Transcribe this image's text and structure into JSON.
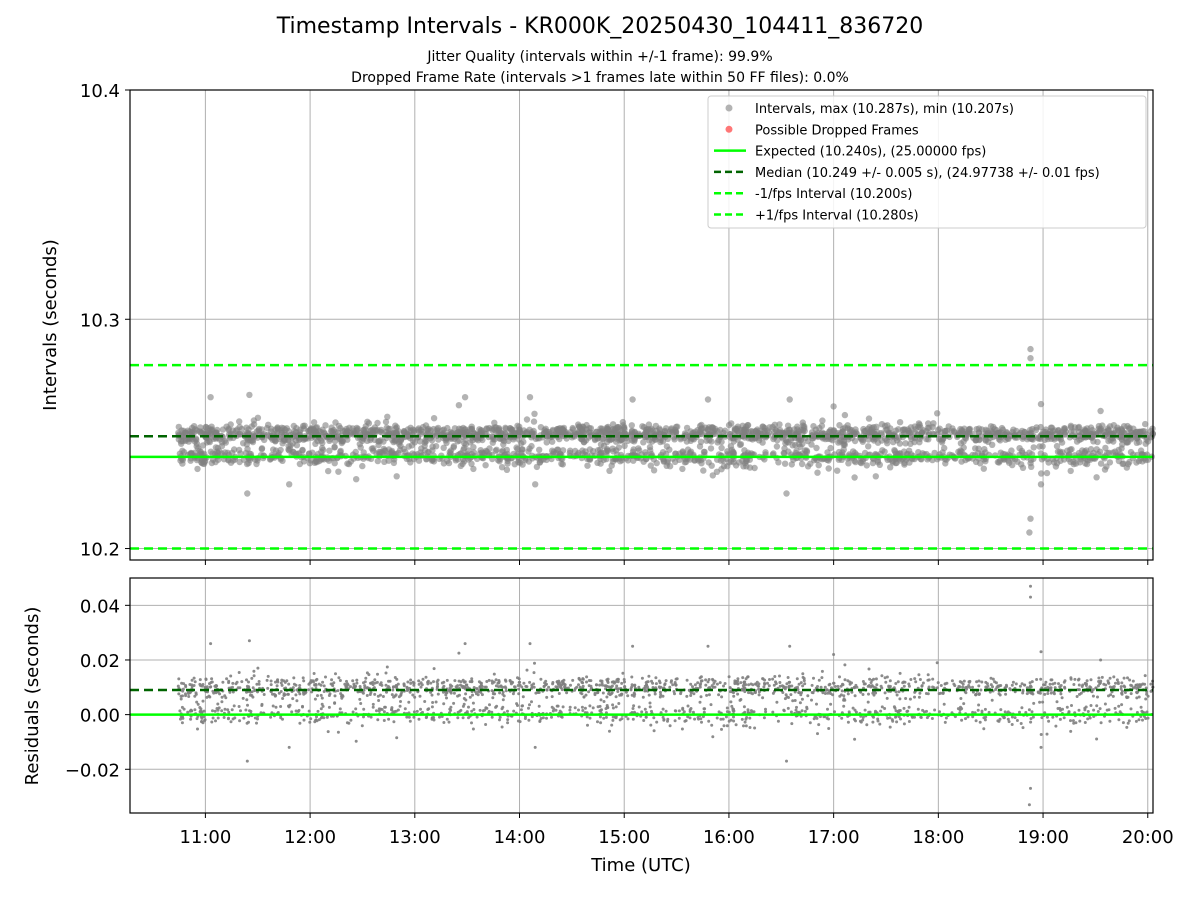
{
  "figure": {
    "title": "Timestamp Intervals - KR000K_20250430_104411_836720",
    "subtitle_line1": "Jitter Quality (intervals within +/-1 frame): 99.9%",
    "subtitle_line2": "Dropped Frame Rate (intervals >1 frames late within 50 FF files): 0.0%"
  },
  "colors": {
    "points": "#808080",
    "dropped": "#ff5555",
    "expected": "#00ff00",
    "median": "#006400",
    "fps_bounds": "#00ff00",
    "grid": "#b0b0b0"
  },
  "chart_data": [
    {
      "type": "scatter",
      "panel": "intervals",
      "ylabel": "Intervals (seconds)",
      "ylim": [
        10.195,
        10.4
      ],
      "yticks": [
        10.2,
        10.3,
        10.4
      ],
      "ytick_labels": [
        "10.2",
        "10.3",
        "10.4"
      ],
      "xlim_hours": [
        10.28,
        20.05
      ],
      "xticks_hours": [
        11,
        12,
        13,
        14,
        15,
        16,
        17,
        18,
        19,
        20
      ],
      "xtick_labels": [
        "11:00",
        "12:00",
        "13:00",
        "14:00",
        "15:00",
        "16:00",
        "17:00",
        "18:00",
        "19:00",
        "20:00"
      ],
      "grid": true,
      "legend_position": "top-right",
      "legend": [
        {
          "label": "Intervals, max (10.287s), min (10.207s)",
          "kind": "point",
          "color": "#a0a0a0"
        },
        {
          "label": "Possible Dropped Frames",
          "kind": "point",
          "color": "#ff5555"
        },
        {
          "label": "Expected (10.240s), (25.00000 fps)",
          "kind": "line",
          "color": "#00ff00"
        },
        {
          "label": "Median (10.249 +/- 0.005 s), (24.97738 +/- 0.01 fps)",
          "kind": "dashed",
          "color": "#006400"
        },
        {
          "label": "-1/fps Interval (10.200s)",
          "kind": "dashed",
          "color": "#00ff00"
        },
        {
          "label": "+1/fps Interval (10.280s)",
          "kind": "dashed",
          "color": "#00ff00"
        }
      ],
      "reference_lines": {
        "expected": 10.24,
        "median": 10.249,
        "minus_one_fps": 10.2,
        "plus_one_fps": 10.28
      },
      "series": {
        "time_range_hours": [
          10.74,
          20.05
        ],
        "cluster_values": [
          10.24,
          10.25
        ],
        "max": 10.287,
        "min": 10.207,
        "outliers": [
          {
            "t": 11.05,
            "y": 10.266
          },
          {
            "t": 11.42,
            "y": 10.267
          },
          {
            "t": 11.4,
            "y": 10.224
          },
          {
            "t": 11.8,
            "y": 10.228
          },
          {
            "t": 13.48,
            "y": 10.266
          },
          {
            "t": 14.1,
            "y": 10.266
          },
          {
            "t": 14.15,
            "y": 10.228
          },
          {
            "t": 15.08,
            "y": 10.265
          },
          {
            "t": 15.8,
            "y": 10.265
          },
          {
            "t": 16.55,
            "y": 10.224
          },
          {
            "t": 16.58,
            "y": 10.265
          },
          {
            "t": 17.0,
            "y": 10.262
          },
          {
            "t": 17.2,
            "y": 10.231
          },
          {
            "t": 18.88,
            "y": 10.287
          },
          {
            "t": 18.88,
            "y": 10.283
          },
          {
            "t": 18.88,
            "y": 10.213
          },
          {
            "t": 18.87,
            "y": 10.207
          },
          {
            "t": 18.98,
            "y": 10.263
          },
          {
            "t": 18.98,
            "y": 10.228
          },
          {
            "t": 19.55,
            "y": 10.26
          }
        ]
      }
    },
    {
      "type": "scatter",
      "panel": "residuals",
      "xlabel": "Time (UTC)",
      "ylabel": "Residuals (seconds)",
      "ylim": [
        -0.036,
        0.05
      ],
      "yticks": [
        -0.02,
        0.0,
        0.02,
        0.04
      ],
      "ytick_labels": [
        "−0.02",
        "0.00",
        "0.02",
        "0.04"
      ],
      "xlim_hours": [
        10.28,
        20.05
      ],
      "xticks_hours": [
        11,
        12,
        13,
        14,
        15,
        16,
        17,
        18,
        19,
        20
      ],
      "xtick_labels": [
        "11:00",
        "12:00",
        "13:00",
        "14:00",
        "15:00",
        "16:00",
        "17:00",
        "18:00",
        "19:00",
        "20:00"
      ],
      "grid": true,
      "reference_lines": {
        "expected": 0.0,
        "median": 0.009
      },
      "series": {
        "time_range_hours": [
          10.74,
          20.05
        ],
        "cluster_values": [
          0.0,
          0.01
        ],
        "outliers": [
          {
            "t": 11.05,
            "y": 0.026
          },
          {
            "t": 11.42,
            "y": 0.027
          },
          {
            "t": 11.4,
            "y": -0.017
          },
          {
            "t": 11.8,
            "y": -0.012
          },
          {
            "t": 13.48,
            "y": 0.026
          },
          {
            "t": 14.1,
            "y": 0.026
          },
          {
            "t": 14.15,
            "y": -0.012
          },
          {
            "t": 15.08,
            "y": 0.025
          },
          {
            "t": 15.8,
            "y": 0.025
          },
          {
            "t": 16.55,
            "y": -0.017
          },
          {
            "t": 16.58,
            "y": 0.025
          },
          {
            "t": 17.0,
            "y": 0.022
          },
          {
            "t": 17.2,
            "y": -0.009
          },
          {
            "t": 18.88,
            "y": 0.047
          },
          {
            "t": 18.88,
            "y": 0.043
          },
          {
            "t": 18.88,
            "y": -0.027
          },
          {
            "t": 18.87,
            "y": -0.033
          },
          {
            "t": 18.98,
            "y": 0.023
          },
          {
            "t": 18.98,
            "y": -0.012
          },
          {
            "t": 19.55,
            "y": 0.02
          }
        ]
      }
    }
  ]
}
